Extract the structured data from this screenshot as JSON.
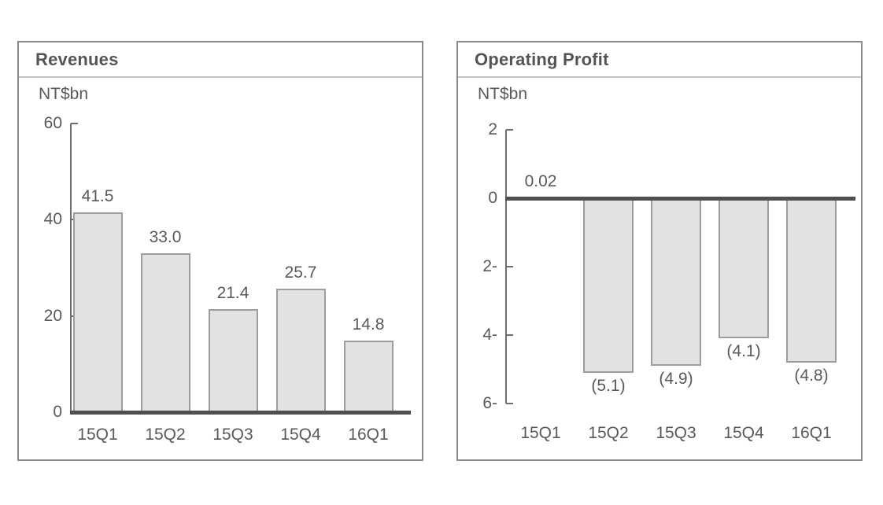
{
  "colors": {
    "background": "#ffffff",
    "panel_border": "#8a8a8a",
    "header_divider": "#c3c3c3",
    "title_text": "#545454",
    "text": "#595959",
    "axis_line": "#6e6e6e",
    "zero_line": "#4f4f4f",
    "bar_fill": "#e2e2e2",
    "bar_border": "#9d9d9d"
  },
  "chart_data": [
    {
      "type": "bar",
      "title": "Revenues",
      "ylabel": "NT$bn",
      "categories": [
        "15Q1",
        "15Q2",
        "15Q3",
        "15Q4",
        "16Q1"
      ],
      "values": [
        41.5,
        33.0,
        21.4,
        25.7,
        14.8
      ],
      "value_labels": [
        "41.5",
        "33.0",
        "21.4",
        "25.7",
        "14.8"
      ],
      "ylim": [
        0,
        60
      ],
      "y_ticks": [
        {
          "value": 60,
          "label": "60"
        },
        {
          "value": 40,
          "label": "40"
        },
        {
          "value": 20,
          "label": "20"
        },
        {
          "value": 0,
          "label": "0"
        }
      ],
      "grid": false,
      "legend": false
    },
    {
      "type": "bar",
      "title": "Operating Profit",
      "ylabel": "NT$bn",
      "categories": [
        "15Q1",
        "15Q2",
        "15Q3",
        "15Q4",
        "16Q1"
      ],
      "values": [
        0.02,
        -5.1,
        -4.9,
        -4.1,
        -4.8
      ],
      "value_labels": [
        "0.02",
        "(5.1)",
        "(4.9)",
        "(4.1)",
        "(4.8)"
      ],
      "ylim": [
        -6,
        2
      ],
      "y_ticks": [
        {
          "value": 2,
          "label": "2"
        },
        {
          "value": 0,
          "label": "0"
        },
        {
          "value": -2,
          "label": "2-"
        },
        {
          "value": -4,
          "label": "4-"
        },
        {
          "value": -6,
          "label": "6-"
        }
      ],
      "grid": false,
      "legend": false
    }
  ]
}
